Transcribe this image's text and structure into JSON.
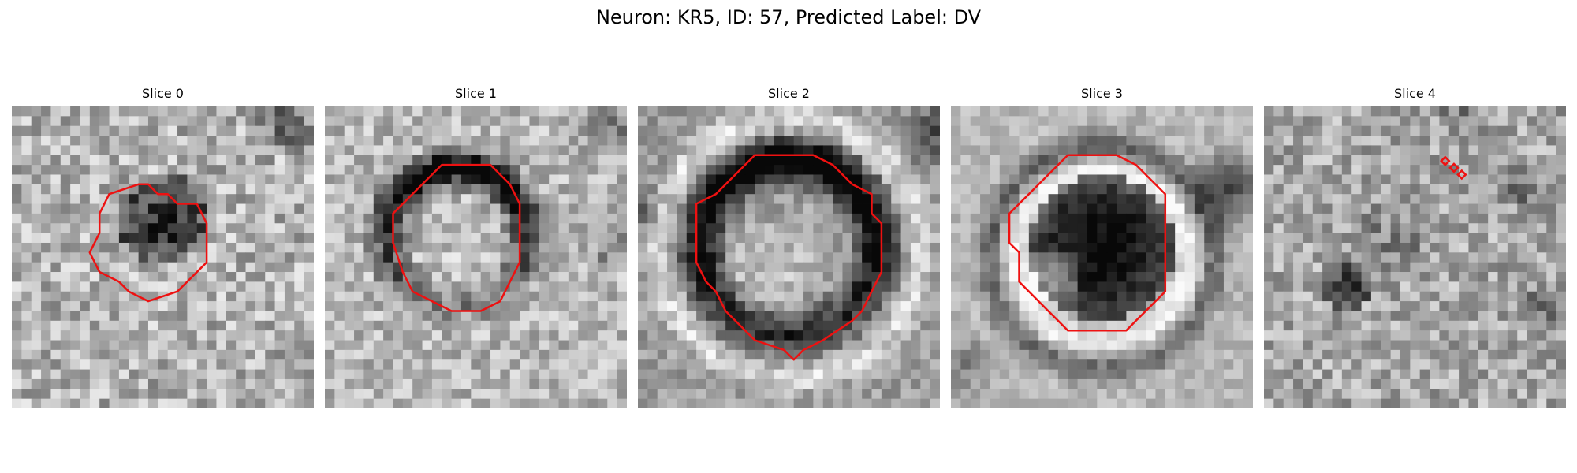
{
  "figure": {
    "title": "Neuron: KR5, ID: 57, Predicted Label: DV"
  },
  "colors": {
    "contour": "#ee1111",
    "background": "#ffffff"
  },
  "panels": [
    {
      "title": "Slice 0",
      "seed": 11
    },
    {
      "title": "Slice 1",
      "seed": 23
    },
    {
      "title": "Slice 2",
      "seed": 37
    },
    {
      "title": "Slice 3",
      "seed": 41
    },
    {
      "title": "Slice 4",
      "seed": 59
    }
  ]
}
